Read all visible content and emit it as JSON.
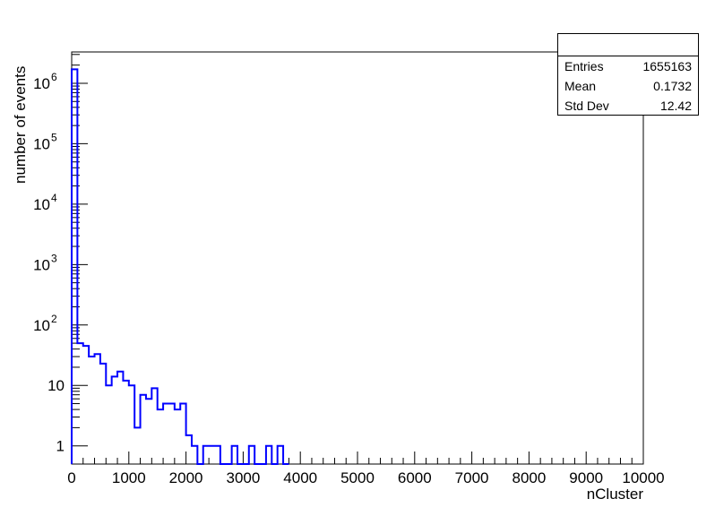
{
  "chart_data": {
    "type": "bar",
    "histogram": "step",
    "ylabel": "number of events",
    "xlabel": "nCluster",
    "xlim": [
      0,
      10000
    ],
    "ylim": [
      0.5,
      3300000
    ],
    "yscale": "log",
    "grid": false,
    "line_color": "#0000ff",
    "bin_width": 100,
    "x_ticks": [
      {
        "value": 0,
        "label": "0"
      },
      {
        "value": 1000,
        "label": "1000"
      },
      {
        "value": 2000,
        "label": "2000"
      },
      {
        "value": 3000,
        "label": "3000"
      },
      {
        "value": 4000,
        "label": "4000"
      },
      {
        "value": 5000,
        "label": "5000"
      },
      {
        "value": 6000,
        "label": "6000"
      },
      {
        "value": 7000,
        "label": "7000"
      },
      {
        "value": 8000,
        "label": "8000"
      },
      {
        "value": 9000,
        "label": "9000"
      },
      {
        "value": 10000,
        "label": "10000"
      }
    ],
    "y_ticks": [
      {
        "value": 1,
        "base": "1",
        "exp": ""
      },
      {
        "value": 10,
        "base": "10",
        "exp": ""
      },
      {
        "value": 100,
        "base": "10",
        "exp": "2"
      },
      {
        "value": 1000,
        "base": "10",
        "exp": "3"
      },
      {
        "value": 10000,
        "base": "10",
        "exp": "4"
      },
      {
        "value": 100000,
        "base": "10",
        "exp": "5"
      },
      {
        "value": 1000000,
        "base": "10",
        "exp": "6"
      }
    ],
    "bins": [
      {
        "x": 0,
        "y": 1700000
      },
      {
        "x": 100,
        "y": 50
      },
      {
        "x": 200,
        "y": 45
      },
      {
        "x": 300,
        "y": 30
      },
      {
        "x": 400,
        "y": 33
      },
      {
        "x": 500,
        "y": 23
      },
      {
        "x": 600,
        "y": 10
      },
      {
        "x": 700,
        "y": 14
      },
      {
        "x": 800,
        "y": 17
      },
      {
        "x": 900,
        "y": 12
      },
      {
        "x": 1000,
        "y": 10
      },
      {
        "x": 1100,
        "y": 2
      },
      {
        "x": 1200,
        "y": 7
      },
      {
        "x": 1300,
        "y": 6
      },
      {
        "x": 1400,
        "y": 9
      },
      {
        "x": 1500,
        "y": 4
      },
      {
        "x": 1600,
        "y": 5
      },
      {
        "x": 1700,
        "y": 5
      },
      {
        "x": 1800,
        "y": 4
      },
      {
        "x": 1900,
        "y": 5
      },
      {
        "x": 2000,
        "y": 1.5
      },
      {
        "x": 2100,
        "y": 1
      },
      {
        "x": 2200,
        "y": 0
      },
      {
        "x": 2300,
        "y": 1
      },
      {
        "x": 2400,
        "y": 1
      },
      {
        "x": 2500,
        "y": 1
      },
      {
        "x": 2600,
        "y": 0
      },
      {
        "x": 2700,
        "y": 0
      },
      {
        "x": 2800,
        "y": 1
      },
      {
        "x": 2900,
        "y": 0
      },
      {
        "x": 3000,
        "y": 0
      },
      {
        "x": 3100,
        "y": 1
      },
      {
        "x": 3200,
        "y": 0
      },
      {
        "x": 3300,
        "y": 0
      },
      {
        "x": 3400,
        "y": 1
      },
      {
        "x": 3500,
        "y": 0
      },
      {
        "x": 3600,
        "y": 1
      },
      {
        "x": 3700,
        "y": 0
      }
    ],
    "stats": {
      "title": "",
      "rows": [
        {
          "label": "Entries",
          "value": "1655163"
        },
        {
          "label": "Mean",
          "value": "0.1732"
        },
        {
          "label": "Std Dev",
          "value": "12.42"
        }
      ]
    }
  }
}
